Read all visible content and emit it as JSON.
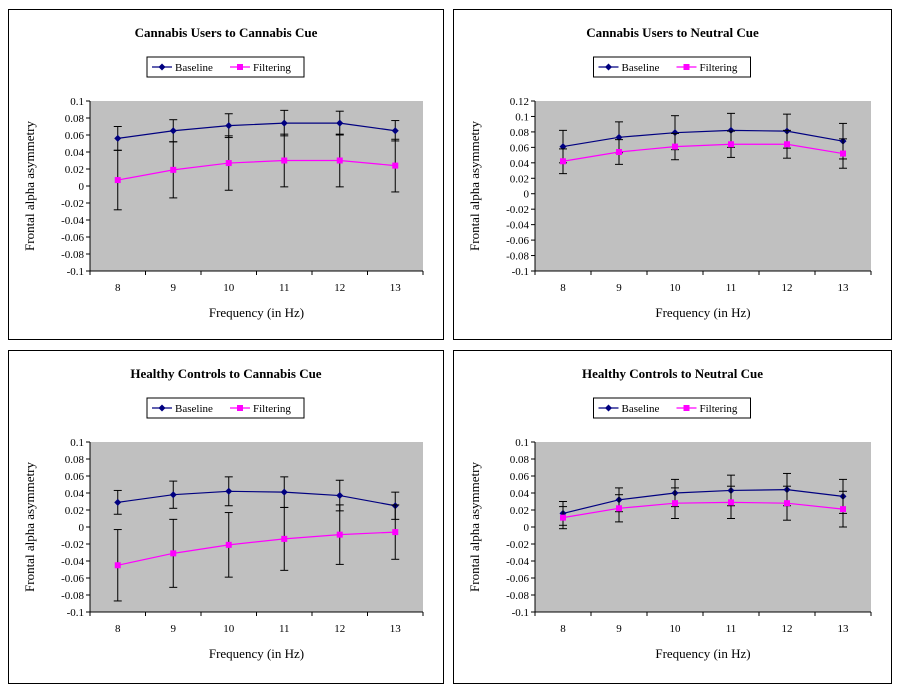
{
  "chart_data": [
    {
      "type": "line",
      "title": "Cannabis Users to Cannabis Cue",
      "xlabel": "Frequency (in Hz)",
      "ylabel": "Frontal alpha asymmetry",
      "categories": [
        "8",
        "9",
        "10",
        "11",
        "12",
        "13"
      ],
      "ylim": [
        -0.1,
        0.1
      ],
      "yticks": [
        "0.1",
        "0.08",
        "0.06",
        "0.04",
        "0.02",
        "0",
        "-0.02",
        "-0.04",
        "-0.06",
        "-0.08",
        "-0.1"
      ],
      "legend_position": "top-center",
      "series": [
        {
          "name": "Baseline",
          "color": "#000080",
          "marker": "diamond",
          "values": [
            0.056,
            0.065,
            0.071,
            0.074,
            0.074,
            0.065
          ],
          "errors": [
            0.014,
            0.013,
            0.014,
            0.015,
            0.014,
            0.012
          ]
        },
        {
          "name": "Filtering",
          "color": "#FF00FF",
          "marker": "square",
          "values": [
            0.007,
            0.019,
            0.027,
            0.03,
            0.03,
            0.024
          ],
          "errors": [
            0.035,
            0.033,
            0.032,
            0.031,
            0.031,
            0.031
          ]
        }
      ]
    },
    {
      "type": "line",
      "title": "Cannabis Users to Neutral Cue",
      "xlabel": "Frequency (in Hz)",
      "ylabel": "Frontal alpha asymmetry",
      "categories": [
        "8",
        "9",
        "10",
        "11",
        "12",
        "13"
      ],
      "ylim": [
        -0.1,
        0.12
      ],
      "yticks": [
        "0.12",
        "0.1",
        "0.08",
        "0.06",
        "0.04",
        "0.02",
        "0",
        "-0.02",
        "-0.04",
        "-0.06",
        "-0.08",
        "-0.1"
      ],
      "legend_position": "top-center",
      "series": [
        {
          "name": "Baseline",
          "color": "#000080",
          "marker": "diamond",
          "values": [
            0.061,
            0.073,
            0.079,
            0.082,
            0.081,
            0.068
          ],
          "errors": [
            0.021,
            0.02,
            0.022,
            0.022,
            0.022,
            0.023
          ]
        },
        {
          "name": "Filtering",
          "color": "#FF00FF",
          "marker": "square",
          "values": [
            0.042,
            0.054,
            0.061,
            0.064,
            0.064,
            0.052
          ],
          "errors": [
            0.016,
            0.016,
            0.017,
            0.017,
            0.018,
            0.019
          ]
        }
      ]
    },
    {
      "type": "line",
      "title": "Healthy Controls to Cannabis Cue",
      "xlabel": "Frequency (in Hz)",
      "ylabel": "Frontal alpha asymmetry",
      "categories": [
        "8",
        "9",
        "10",
        "11",
        "12",
        "13"
      ],
      "ylim": [
        -0.1,
        0.1
      ],
      "yticks": [
        "0.1",
        "0.08",
        "0.06",
        "0.04",
        "0.02",
        "0",
        "-0.02",
        "-0.04",
        "-0.06",
        "-0.08",
        "-0.1"
      ],
      "legend_position": "top-center",
      "series": [
        {
          "name": "Baseline",
          "color": "#000080",
          "marker": "diamond",
          "values": [
            0.029,
            0.038,
            0.042,
            0.041,
            0.037,
            0.025
          ],
          "errors": [
            0.014,
            0.016,
            0.017,
            0.018,
            0.018,
            0.016
          ]
        },
        {
          "name": "Filtering",
          "color": "#FF00FF",
          "marker": "square",
          "values": [
            -0.045,
            -0.031,
            -0.021,
            -0.014,
            -0.009,
            -0.006
          ],
          "errors": [
            0.042,
            0.04,
            0.038,
            0.037,
            0.035,
            0.032
          ]
        }
      ]
    },
    {
      "type": "line",
      "title": "Healthy Controls to Neutral Cue",
      "xlabel": "Frequency (in Hz)",
      "ylabel": "Frontal alpha asymmetry",
      "categories": [
        "8",
        "9",
        "10",
        "11",
        "12",
        "13"
      ],
      "ylim": [
        -0.1,
        0.1
      ],
      "yticks": [
        "0.1",
        "0.08",
        "0.06",
        "0.04",
        "0.02",
        "0",
        "-0.02",
        "-0.04",
        "-0.06",
        "-0.08",
        "-0.1"
      ],
      "legend_position": "top-center",
      "series": [
        {
          "name": "Baseline",
          "color": "#000080",
          "marker": "diamond",
          "values": [
            0.016,
            0.032,
            0.04,
            0.043,
            0.044,
            0.036
          ],
          "errors": [
            0.014,
            0.014,
            0.016,
            0.018,
            0.019,
            0.02
          ]
        },
        {
          "name": "Filtering",
          "color": "#FF00FF",
          "marker": "square",
          "values": [
            0.011,
            0.022,
            0.028,
            0.029,
            0.028,
            0.021
          ],
          "errors": [
            0.013,
            0.016,
            0.018,
            0.019,
            0.02,
            0.021
          ]
        }
      ]
    }
  ],
  "style": {
    "plot_background": "#C0C0C0",
    "error_bar_color": "#000000"
  }
}
